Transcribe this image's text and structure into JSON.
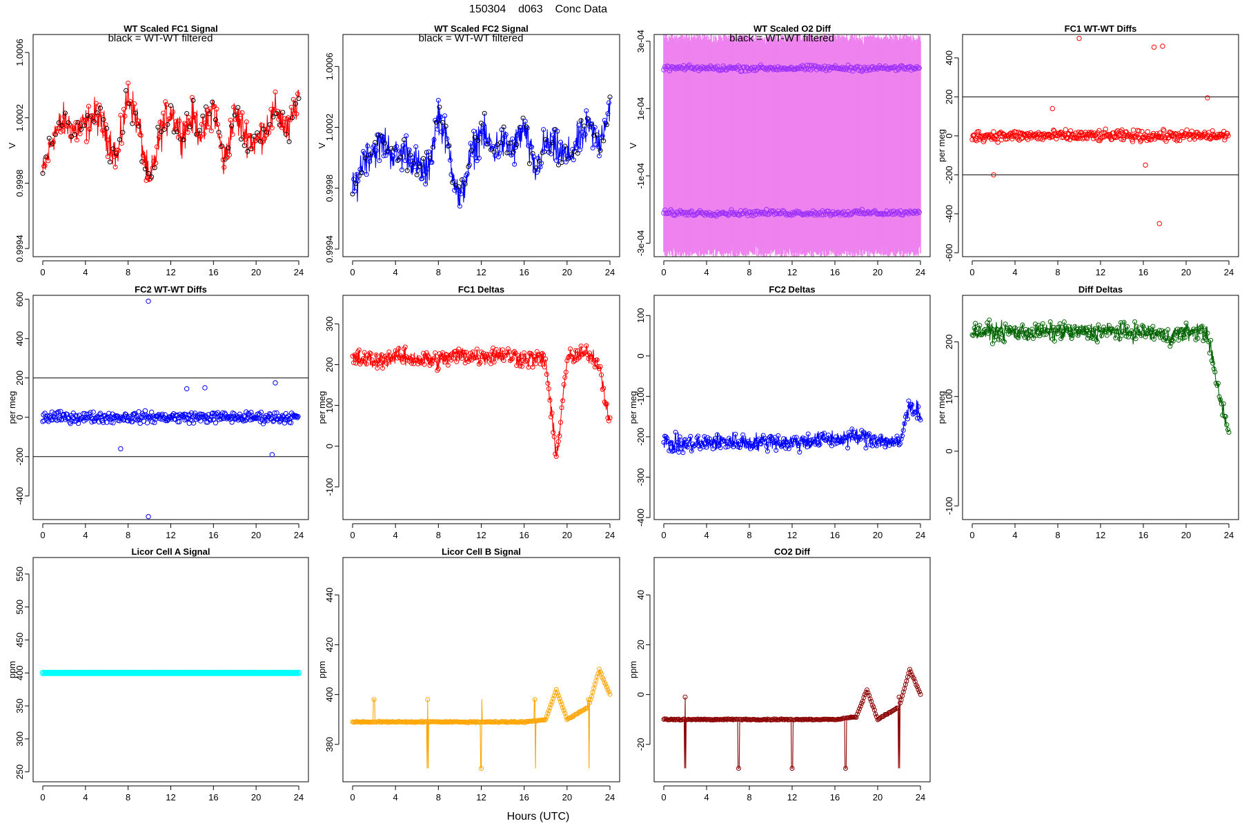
{
  "header": {
    "title": "150304    d063    Conc Data",
    "xlabel": "Hours (UTC)",
    "caption": "black = WT-WT filtered"
  },
  "chart_data": [
    {
      "id": "p1",
      "type": "line",
      "title": "WT Scaled FC1 Signal",
      "ylabel": "V",
      "xlim": [
        0,
        24
      ],
      "ylim": [
        0.99935,
        1.00071
      ],
      "yticks": [
        0.9994,
        0.9998,
        1.0002,
        1.0006
      ],
      "yticklabels": [
        "0.9994",
        "0.9998",
        "1.0002",
        "1.0006"
      ],
      "xticks": [
        0,
        4,
        8,
        12,
        16,
        20,
        24
      ],
      "color": "#ff0000",
      "pointcolor": "#000000",
      "series": [
        {
          "x": [
            0,
            1,
            2,
            3,
            4,
            5,
            6,
            7,
            8,
            9,
            10,
            11,
            12,
            13,
            14,
            15,
            16,
            17,
            18,
            19,
            20,
            21,
            22,
            23,
            24
          ],
          "y": [
            0.99985,
            1.0001,
            1.00018,
            1.00012,
            1.00015,
            1.00022,
            1.0001,
            0.99995,
            1.00035,
            1.00015,
            0.99978,
            1.0001,
            1.00025,
            1.0001,
            1.0002,
            1.0001,
            1.00028,
            0.99992,
            1.00022,
            1.0001,
            1.00005,
            1.00015,
            1.00025,
            1.0001,
            1.00035
          ]
        }
      ],
      "caption": true
    },
    {
      "id": "p2",
      "type": "line",
      "title": "WT Scaled FC2 Signal",
      "ylabel": "V",
      "xlim": [
        0,
        24
      ],
      "ylim": [
        0.99935,
        1.00081
      ],
      "yticks": [
        0.9994,
        0.9998,
        1.0002,
        1.0006
      ],
      "yticklabels": [
        "0.9994",
        "0.9998",
        "1.0002",
        "1.0006"
      ],
      "xticks": [
        0,
        4,
        8,
        12,
        16,
        20,
        24
      ],
      "color": "#0000ff",
      "pointcolor": "#000000",
      "series": [
        {
          "x": [
            0,
            1,
            2,
            3,
            4,
            5,
            6,
            7,
            8,
            9,
            10,
            11,
            12,
            13,
            14,
            15,
            16,
            17,
            18,
            19,
            20,
            21,
            22,
            23,
            24
          ],
          "y": [
            0.99975,
            1.0,
            1.00005,
            1.0001,
            1.0,
            1.00005,
            0.99995,
            0.9999,
            1.0003,
            1.00005,
            0.9997,
            1.0,
            1.00018,
            1.00005,
            1.0001,
            1.00005,
            1.0002,
            0.9999,
            1.0001,
            1.00005,
            1.0,
            1.0001,
            1.0002,
            1.0001,
            1.00035
          ]
        }
      ],
      "caption": true
    },
    {
      "id": "p3",
      "type": "scatter",
      "title": "WT Scaled O2 Diff",
      "ylabel": "V",
      "xlim": [
        0,
        24
      ],
      "ylim": [
        -0.00034,
        0.00032
      ],
      "yticks": [
        -0.0003,
        -0.0001,
        0.0001,
        0.0003
      ],
      "yticklabels": [
        "-3e-04",
        "-1e-04",
        "1e-04",
        "3e-04"
      ],
      "xticks": [
        0,
        4,
        8,
        12,
        16,
        20,
        24
      ],
      "color": "#ee82ee",
      "pointcolor": "#9b30ff",
      "bands": [
        0.00022,
        -0.00021
      ],
      "caption": true
    },
    {
      "id": "p4",
      "type": "scatter",
      "title": "FC1 WT-WT Diffs",
      "ylabel": "per meg",
      "xlim": [
        0,
        24
      ],
      "ylim": [
        -620,
        520
      ],
      "yticks": [
        -600,
        -400,
        -200,
        0,
        200,
        400
      ],
      "yticklabels": [
        "-600",
        "-400",
        "-200",
        "0",
        "200",
        "400"
      ],
      "xticks": [
        0,
        4,
        8,
        12,
        16,
        20,
        24
      ],
      "color": "#ff0000",
      "hlines": [
        200,
        -200
      ],
      "series": [
        {
          "x": [
            2,
            7.5,
            10,
            16.2,
            17,
            17.5,
            17.8,
            22
          ],
          "y": [
            -200,
            140,
            500,
            -150,
            455,
            -450,
            460,
            195
          ]
        }
      ]
    },
    {
      "id": "p5",
      "type": "scatter",
      "title": "FC2 WT-WT Diffs",
      "ylabel": "per meg",
      "xlim": [
        0,
        24
      ],
      "ylim": [
        -520,
        620
      ],
      "yticks": [
        -400,
        -200,
        0,
        200,
        400,
        600
      ],
      "yticklabels": [
        "-400",
        "-200",
        "0",
        "200",
        "400",
        "600"
      ],
      "xticks": [
        0,
        4,
        8,
        12,
        16,
        20,
        24
      ],
      "color": "#0000ff",
      "hlines": [
        200,
        -200
      ],
      "series": [
        {
          "x": [
            7.3,
            9.9,
            9.9,
            13.5,
            15.2,
            21.5,
            21.8
          ],
          "y": [
            -160,
            590,
            -505,
            145,
            150,
            -190,
            175
          ]
        }
      ]
    },
    {
      "id": "p6",
      "type": "line",
      "title": "FC1 Deltas",
      "ylabel": "per meg",
      "xlim": [
        0,
        24
      ],
      "ylim": [
        -180,
        370
      ],
      "yticks": [
        -100,
        0,
        100,
        200,
        300
      ],
      "yticklabels": [
        "-100",
        "0",
        "100",
        "200",
        "300"
      ],
      "xticks": [
        0,
        4,
        8,
        12,
        16,
        20,
        24
      ],
      "color": "#ff0000",
      "series": [
        {
          "x": [
            0,
            2,
            4,
            6,
            8,
            10,
            12,
            14,
            16,
            18,
            19,
            20,
            22,
            23,
            24
          ],
          "y": [
            215,
            210,
            220,
            215,
            210,
            225,
            220,
            225,
            215,
            210,
            -30,
            215,
            230,
            200,
            60
          ]
        }
      ]
    },
    {
      "id": "p7",
      "type": "line",
      "title": "FC2 Deltas",
      "ylabel": "per meg",
      "xlim": [
        0,
        24
      ],
      "ylim": [
        -405,
        150
      ],
      "yticks": [
        -400,
        -300,
        -200,
        -100,
        0,
        100
      ],
      "yticklabels": [
        "-400",
        "-300",
        "-200",
        "-100",
        "0",
        "100"
      ],
      "xticks": [
        0,
        4,
        8,
        12,
        16,
        20,
        24
      ],
      "color": "#0000ff",
      "series": [
        {
          "x": [
            0,
            2,
            4,
            6,
            8,
            10,
            12,
            14,
            16,
            18,
            20,
            22,
            23,
            24
          ],
          "y": [
            -215,
            -220,
            -215,
            -210,
            -215,
            -210,
            -215,
            -210,
            -205,
            -200,
            -205,
            -220,
            -120,
            -140
          ]
        }
      ]
    },
    {
      "id": "p8",
      "type": "line",
      "title": "Diff Deltas",
      "ylabel": "per meg",
      "xlim": [
        0,
        24
      ],
      "ylim": [
        -125,
        285
      ],
      "yticks": [
        -100,
        0,
        100,
        200
      ],
      "yticklabels": [
        "-100",
        "0",
        "100",
        "200"
      ],
      "xticks": [
        0,
        4,
        8,
        12,
        16,
        20,
        24
      ],
      "color": "#006400",
      "series": [
        {
          "x": [
            0,
            2,
            4,
            6,
            8,
            10,
            12,
            14,
            16,
            18,
            20,
            22,
            23,
            24
          ],
          "y": [
            218,
            218,
            218,
            218,
            218,
            218,
            218,
            218,
            218,
            210,
            218,
            218,
            110,
            30
          ]
        }
      ]
    },
    {
      "id": "p9",
      "type": "line",
      "title": "Licor Cell A Signal",
      "ylabel": "ppm",
      "xlim": [
        0,
        24
      ],
      "ylim": [
        235,
        575
      ],
      "yticks": [
        250,
        300,
        350,
        400,
        450,
        500,
        550
      ],
      "yticklabels": [
        "250",
        "300",
        "350",
        "400",
        "450",
        "500",
        "550"
      ],
      "xticks": [
        0,
        4,
        8,
        12,
        16,
        20,
        24
      ],
      "color": "#00ffff",
      "series": [
        {
          "x": [
            0,
            24
          ],
          "y": [
            400,
            400
          ]
        }
      ]
    },
    {
      "id": "p10",
      "type": "line",
      "title": "Licor Cell B Signal",
      "ylabel": "ppm",
      "xlim": [
        0,
        24
      ],
      "ylim": [
        365,
        455
      ],
      "yticks": [
        380,
        400,
        420,
        440
      ],
      "yticklabels": [
        "380",
        "400",
        "420",
        "440"
      ],
      "xticks": [
        0,
        4,
        8,
        12,
        16,
        20,
        24
      ],
      "color": "#ffa500",
      "series": [
        {
          "x": [
            0,
            2,
            4,
            6,
            8,
            10,
            12,
            14,
            16,
            18,
            19,
            20,
            22,
            23,
            24
          ],
          "y": [
            389,
            389,
            389,
            389,
            389,
            389,
            389,
            389,
            389,
            390,
            402,
            390,
            395,
            410,
            400
          ]
        }
      ]
    },
    {
      "id": "p11",
      "type": "line",
      "title": "CO2 Diff",
      "ylabel": "ppm",
      "xlim": [
        0,
        24
      ],
      "ylim": [
        -35,
        55
      ],
      "yticks": [
        -20,
        0,
        20,
        40
      ],
      "yticklabels": [
        "-20",
        "0",
        "20",
        "40"
      ],
      "xticks": [
        0,
        4,
        8,
        12,
        16,
        20,
        24
      ],
      "color": "#8b0000",
      "series": [
        {
          "x": [
            0,
            2,
            4,
            6,
            8,
            10,
            12,
            14,
            16,
            18,
            19,
            20,
            22,
            23,
            24
          ],
          "y": [
            -10,
            -10,
            -10,
            -10,
            -10,
            -10,
            -10,
            -10,
            -10,
            -9,
            2,
            -10,
            -5,
            10,
            0
          ]
        }
      ]
    }
  ]
}
